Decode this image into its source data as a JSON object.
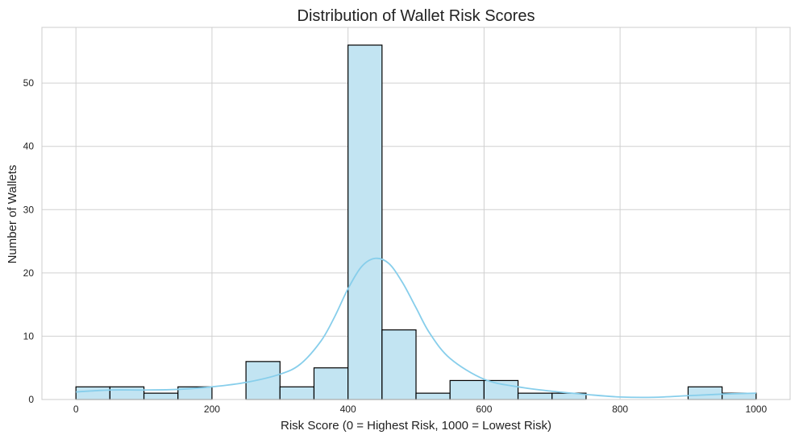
{
  "chart_data": {
    "type": "bar",
    "title": "Distribution of Wallet Risk Scores",
    "xlabel": "Risk Score (0 = Highest Risk, 1000 = Lowest Risk)",
    "ylabel": "Number of Wallets",
    "xlim": [
      -50,
      1050
    ],
    "ylim": [
      0,
      58.8
    ],
    "xticks": [
      0,
      200,
      400,
      600,
      800,
      1000
    ],
    "yticks": [
      0,
      10,
      20,
      30,
      40,
      50
    ],
    "grid": true,
    "bin_edges": [
      0,
      50,
      100,
      150,
      200,
      250,
      300,
      350,
      400,
      450,
      500,
      550,
      600,
      650,
      700,
      750,
      800,
      850,
      900,
      950,
      1000
    ],
    "counts": [
      2,
      2,
      1,
      2,
      0,
      6,
      2,
      5,
      56,
      11,
      1,
      3,
      3,
      1,
      1,
      0,
      0,
      0,
      2,
      1
    ],
    "kde_line": {
      "x": [
        0,
        50,
        100,
        150,
        200,
        250,
        300,
        330,
        360,
        380,
        400,
        420,
        440,
        460,
        480,
        500,
        520,
        550,
        600,
        650,
        700,
        750,
        800,
        850,
        900,
        950,
        1000
      ],
      "y": [
        1.2,
        1.5,
        1.5,
        1.6,
        2.0,
        2.7,
        4.0,
        5.6,
        9.2,
        13.0,
        17.5,
        21.0,
        22.3,
        21.5,
        18.5,
        14.5,
        10.5,
        6.5,
        3.2,
        2.0,
        1.3,
        0.8,
        0.4,
        0.35,
        0.6,
        0.85,
        1.0
      ]
    },
    "colors": {
      "bar_fill": "#c2e4f2",
      "bar_edge": "#000000",
      "kde": "#87ceeb",
      "grid": "#d0d0d0",
      "spine": "#cccccc",
      "text": "#222222"
    }
  }
}
